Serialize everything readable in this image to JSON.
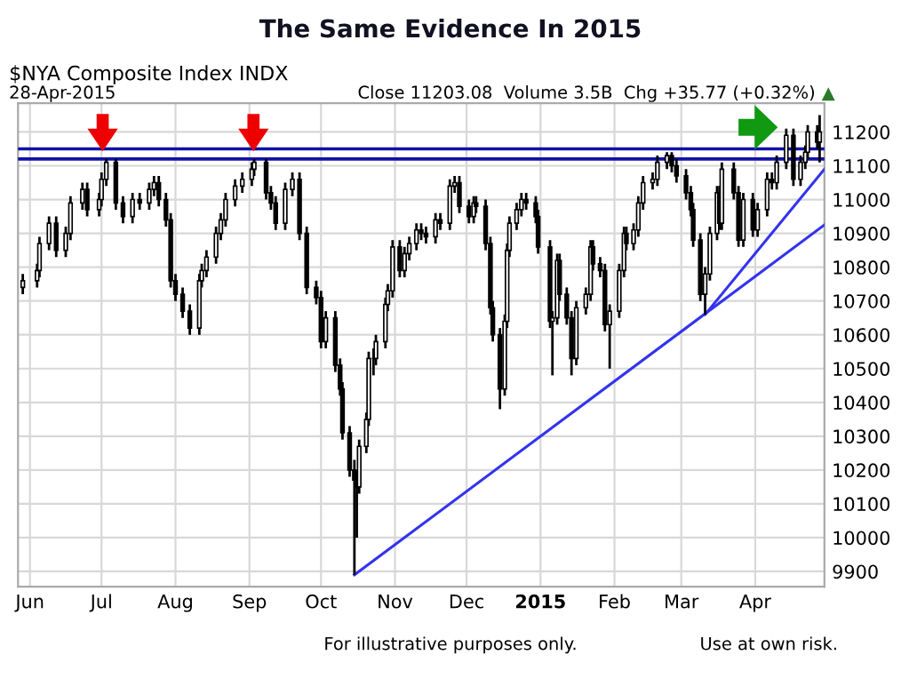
{
  "chart_data": {
    "type": "candlestick",
    "title": "The Same Evidence In 2015",
    "subtitle": "$NYA Composite Index INDX",
    "annotations": [
      "28-Apr-2015",
      "Close 11203.08  Volume 3.5B  Chg +35.77 (+0.32%)",
      "▲",
      "For illustrative purposes only.",
      "Use at own risk."
    ],
    "color": "#000000",
    "x": [
      "2014-05-29",
      "2014-06-04",
      "2014-06-05",
      "2014-06-09",
      "2014-06-12",
      "2014-06-16",
      "2014-06-18",
      "2014-06-23",
      "2014-06-25",
      "2014-06-30",
      "2014-07-01",
      "2014-07-03",
      "2014-07-07",
      "2014-07-10",
      "2014-07-14",
      "2014-07-17",
      "2014-07-21",
      "2014-07-23",
      "2014-07-25",
      "2014-07-28",
      "2014-07-30",
      "2014-08-01",
      "2014-08-04",
      "2014-08-07",
      "2014-08-11",
      "2014-08-12",
      "2014-08-14",
      "2014-08-18",
      "2014-08-20",
      "2014-08-22",
      "2014-08-26",
      "2014-08-29",
      "2014-09-02",
      "2014-09-03",
      "2014-09-08",
      "2014-09-10",
      "2014-09-12",
      "2014-09-16",
      "2014-09-19",
      "2014-09-22",
      "2014-09-25",
      "2014-09-29",
      "2014-10-01",
      "2014-10-03",
      "2014-10-07",
      "2014-10-09",
      "2014-10-10",
      "2014-10-13",
      "2014-10-15",
      "2014-10-16",
      "2014-10-17",
      "2014-10-20",
      "2014-10-21",
      "2014-10-23",
      "2014-10-24",
      "2014-10-28",
      "2014-10-29",
      "2014-10-31",
      "2014-11-03",
      "2014-11-05",
      "2014-11-07",
      "2014-11-10",
      "2014-11-12",
      "2014-11-14",
      "2014-11-18",
      "2014-11-20",
      "2014-11-24",
      "2014-11-26",
      "2014-11-28",
      "2014-12-02",
      "2014-12-04",
      "2014-12-05",
      "2014-12-09",
      "2014-12-11",
      "2014-12-12",
      "2014-12-15",
      "2014-12-17",
      "2014-12-18",
      "2014-12-19",
      "2014-12-22",
      "2014-12-24",
      "2014-12-26",
      "2014-12-30",
      "2014-12-31",
      "2015-01-05",
      "2015-01-06",
      "2015-01-08",
      "2015-01-09",
      "2015-01-12",
      "2015-01-14",
      "2015-01-16",
      "2015-01-20",
      "2015-01-22",
      "2015-01-23",
      "2015-01-26",
      "2015-01-28",
      "2015-01-30",
      "2015-02-03",
      "2015-02-05",
      "2015-02-06",
      "2015-02-09",
      "2015-02-11",
      "2015-02-13",
      "2015-02-17",
      "2015-02-19",
      "2015-02-23",
      "2015-02-25",
      "2015-02-27",
      "2015-03-03",
      "2015-03-05",
      "2015-03-06",
      "2015-03-09",
      "2015-03-11",
      "2015-03-13",
      "2015-03-16",
      "2015-03-17",
      "2015-03-18",
      "2015-03-23",
      "2015-03-25",
      "2015-03-27",
      "2015-03-31",
      "2015-04-02",
      "2015-04-06",
      "2015-04-08",
      "2015-04-10",
      "2015-04-14",
      "2015-04-17",
      "2015-04-20",
      "2015-04-22",
      "2015-04-23",
      "2015-04-27",
      "2015-04-28"
    ],
    "ohlc": [
      [
        10740,
        10780,
        10720,
        10760
      ],
      [
        10760,
        10810,
        10740,
        10790
      ],
      [
        10790,
        10890,
        10770,
        10870
      ],
      [
        10870,
        10950,
        10850,
        10930
      ],
      [
        10930,
        10950,
        10830,
        10850
      ],
      [
        10850,
        10920,
        10830,
        10900
      ],
      [
        10900,
        11010,
        10880,
        10990
      ],
      [
        10990,
        11050,
        10970,
        11030
      ],
      [
        11030,
        11050,
        10950,
        10970
      ],
      [
        10970,
        11020,
        10950,
        11000
      ],
      [
        11000,
        11080,
        10980,
        11060
      ],
      [
        11060,
        11120,
        11040,
        11110
      ],
      [
        11110,
        11120,
        10970,
        10990
      ],
      [
        10990,
        11010,
        10930,
        10950
      ],
      [
        10950,
        11020,
        10930,
        11000
      ],
      [
        11000,
        11020,
        10970,
        10990
      ],
      [
        10990,
        11050,
        10970,
        11030
      ],
      [
        11030,
        11070,
        11010,
        11050
      ],
      [
        11050,
        11070,
        10980,
        11000
      ],
      [
        11000,
        11020,
        10920,
        10940
      ],
      [
        10940,
        10960,
        10740,
        10760
      ],
      [
        10760,
        10780,
        10700,
        10720
      ],
      [
        10720,
        10740,
        10650,
        10670
      ],
      [
        10670,
        10690,
        10600,
        10620
      ],
      [
        10620,
        10780,
        10600,
        10760
      ],
      [
        10760,
        10810,
        10740,
        10790
      ],
      [
        10790,
        10850,
        10770,
        10830
      ],
      [
        10830,
        10920,
        10810,
        10900
      ],
      [
        10900,
        10960,
        10880,
        10940
      ],
      [
        10940,
        11020,
        10920,
        11000
      ],
      [
        11000,
        11060,
        10980,
        11040
      ],
      [
        11040,
        11080,
        11020,
        11060
      ],
      [
        11060,
        11110,
        11040,
        11090
      ],
      [
        11090,
        11120,
        11070,
        11110
      ],
      [
        11110,
        11120,
        11000,
        11020
      ],
      [
        11020,
        11040,
        10970,
        10990
      ],
      [
        10990,
        11010,
        10910,
        10930
      ],
      [
        10930,
        11050,
        10910,
        11030
      ],
      [
        11030,
        11080,
        11010,
        11060
      ],
      [
        11060,
        11080,
        10880,
        10900
      ],
      [
        10900,
        10920,
        10720,
        10740
      ],
      [
        10740,
        10760,
        10690,
        10710
      ],
      [
        10710,
        10730,
        10560,
        10580
      ],
      [
        10580,
        10670,
        10560,
        10650
      ],
      [
        10650,
        10670,
        10490,
        10510
      ],
      [
        10510,
        10530,
        10420,
        10440
      ],
      [
        10440,
        10460,
        10290,
        10310
      ],
      [
        10310,
        10330,
        10180,
        10200
      ],
      [
        10200,
        10230,
        9890,
        10170
      ],
      [
        10170,
        10200,
        10000,
        10150
      ],
      [
        10150,
        10290,
        10130,
        10270
      ],
      [
        10270,
        10370,
        10250,
        10350
      ],
      [
        10350,
        10550,
        10330,
        10530
      ],
      [
        10530,
        10560,
        10480,
        10530
      ],
      [
        10530,
        10600,
        10510,
        10580
      ],
      [
        10580,
        10710,
        10560,
        10690
      ],
      [
        10690,
        10750,
        10670,
        10730
      ],
      [
        10730,
        10880,
        10710,
        10860
      ],
      [
        10860,
        10880,
        10770,
        10790
      ],
      [
        10790,
        10860,
        10770,
        10840
      ],
      [
        10840,
        10890,
        10820,
        10870
      ],
      [
        10870,
        10930,
        10850,
        10910
      ],
      [
        10910,
        10930,
        10880,
        10900
      ],
      [
        10900,
        10920,
        10870,
        10890
      ],
      [
        10890,
        10960,
        10870,
        10940
      ],
      [
        10940,
        10960,
        10910,
        10930
      ],
      [
        10930,
        11060,
        10910,
        11040
      ],
      [
        11040,
        11070,
        11020,
        11050
      ],
      [
        11050,
        11070,
        10960,
        10980
      ],
      [
        10980,
        11000,
        10930,
        10950
      ],
      [
        10950,
        11010,
        10930,
        10990
      ],
      [
        10990,
        11010,
        10960,
        10980
      ],
      [
        10980,
        11000,
        10850,
        10870
      ],
      [
        10870,
        10890,
        10660,
        10680
      ],
      [
        10680,
        10700,
        10580,
        10600
      ],
      [
        10600,
        10620,
        10380,
        10440
      ],
      [
        10440,
        10660,
        10420,
        10640
      ],
      [
        10640,
        10870,
        10620,
        10850
      ],
      [
        10850,
        10950,
        10830,
        10930
      ],
      [
        10930,
        10990,
        10910,
        10970
      ],
      [
        10970,
        11020,
        10950,
        11000
      ],
      [
        11000,
        11020,
        10970,
        10990
      ],
      [
        10990,
        11010,
        10930,
        10950
      ],
      [
        10950,
        10970,
        10840,
        10860
      ],
      [
        10860,
        10880,
        10620,
        10640
      ],
      [
        10640,
        10670,
        10480,
        10650
      ],
      [
        10650,
        10840,
        10630,
        10820
      ],
      [
        10820,
        10840,
        10700,
        10720
      ],
      [
        10720,
        10740,
        10630,
        10650
      ],
      [
        10650,
        10670,
        10480,
        10530
      ],
      [
        10530,
        10700,
        10510,
        10680
      ],
      [
        10680,
        10740,
        10660,
        10720
      ],
      [
        10720,
        10880,
        10700,
        10860
      ],
      [
        10860,
        10880,
        10790,
        10810
      ],
      [
        10810,
        10830,
        10770,
        10790
      ],
      [
        10790,
        10810,
        10610,
        10630
      ],
      [
        10630,
        10690,
        10500,
        10670
      ],
      [
        10670,
        10810,
        10650,
        10790
      ],
      [
        10790,
        10920,
        10770,
        10900
      ],
      [
        10900,
        10920,
        10850,
        10870
      ],
      [
        10870,
        10930,
        10850,
        10910
      ],
      [
        10910,
        11010,
        10890,
        10990
      ],
      [
        10990,
        11070,
        10970,
        11050
      ],
      [
        11050,
        11080,
        11030,
        11060
      ],
      [
        11060,
        11130,
        11040,
        11110
      ],
      [
        11110,
        11140,
        11090,
        11130
      ],
      [
        11130,
        11140,
        11080,
        11100
      ],
      [
        11100,
        11120,
        11050,
        11070
      ],
      [
        11070,
        11090,
        11000,
        11020
      ],
      [
        11020,
        11040,
        10950,
        10970
      ],
      [
        10970,
        10990,
        10860,
        10880
      ],
      [
        10880,
        10900,
        10700,
        10720
      ],
      [
        10720,
        10800,
        10660,
        10780
      ],
      [
        10780,
        10920,
        10760,
        10900
      ],
      [
        10900,
        11040,
        10880,
        11020
      ],
      [
        11020,
        11040,
        10910,
        10930
      ],
      [
        10930,
        11110,
        10910,
        11090
      ],
      [
        11090,
        11110,
        11000,
        11020
      ],
      [
        11020,
        11040,
        10860,
        10880
      ],
      [
        10880,
        11020,
        10860,
        11000
      ],
      [
        11000,
        11020,
        10890,
        10910
      ],
      [
        10910,
        10990,
        10890,
        10970
      ],
      [
        10970,
        11080,
        10950,
        11060
      ],
      [
        11060,
        11080,
        11030,
        11050
      ],
      [
        11050,
        11130,
        11030,
        11110
      ],
      [
        11110,
        11210,
        11090,
        11190
      ],
      [
        11190,
        11210,
        11040,
        11060
      ],
      [
        11060,
        11130,
        11040,
        11110
      ],
      [
        11110,
        11160,
        11090,
        11140
      ],
      [
        11140,
        11220,
        11120,
        11200
      ],
      [
        11200,
        11220,
        11150,
        11170
      ],
      [
        11170,
        11250,
        11110,
        11200
      ]
    ],
    "series": [
      {
        "type": "line",
        "color": "#3333ee",
        "x": [
          "2014-10-15",
          "2015-04-30"
        ],
        "values": [
          9890,
          10925
        ]
      },
      {
        "type": "line",
        "color": "#3333ee",
        "x": [
          "2015-03-11",
          "2015-04-30"
        ],
        "values": [
          10660,
          11090
        ]
      }
    ],
    "ref_lines": [
      {
        "axis": "y",
        "value": 11150,
        "color": "#1111aa"
      },
      {
        "axis": "y",
        "value": 11120,
        "color": "#1111aa"
      }
    ],
    "xlim": [
      "2014-05-27",
      "2015-04-30"
    ],
    "xticks": [
      {
        "value": "2014-06-01",
        "label": "Jun"
      },
      {
        "value": "2014-07-01",
        "label": "Jul"
      },
      {
        "value": "2014-08-01",
        "label": "Aug"
      },
      {
        "value": "2014-09-01",
        "label": "Sep"
      },
      {
        "value": "2014-10-01",
        "label": "Oct"
      },
      {
        "value": "2014-11-01",
        "label": "Nov"
      },
      {
        "value": "2014-12-01",
        "label": "Dec"
      },
      {
        "value": "2015-01-01",
        "label": "2015"
      },
      {
        "value": "2015-02-01",
        "label": "Feb"
      },
      {
        "value": "2015-03-01",
        "label": "Mar"
      },
      {
        "value": "2015-04-01",
        "label": "Apr"
      }
    ],
    "ylim": [
      9855,
      11285
    ],
    "yticks": [
      9900,
      10000,
      10100,
      10200,
      10300,
      10400,
      10500,
      10600,
      10700,
      10800,
      10900,
      11000,
      11100,
      11200
    ],
    "grid": true,
    "legend": false,
    "marker": "none"
  }
}
